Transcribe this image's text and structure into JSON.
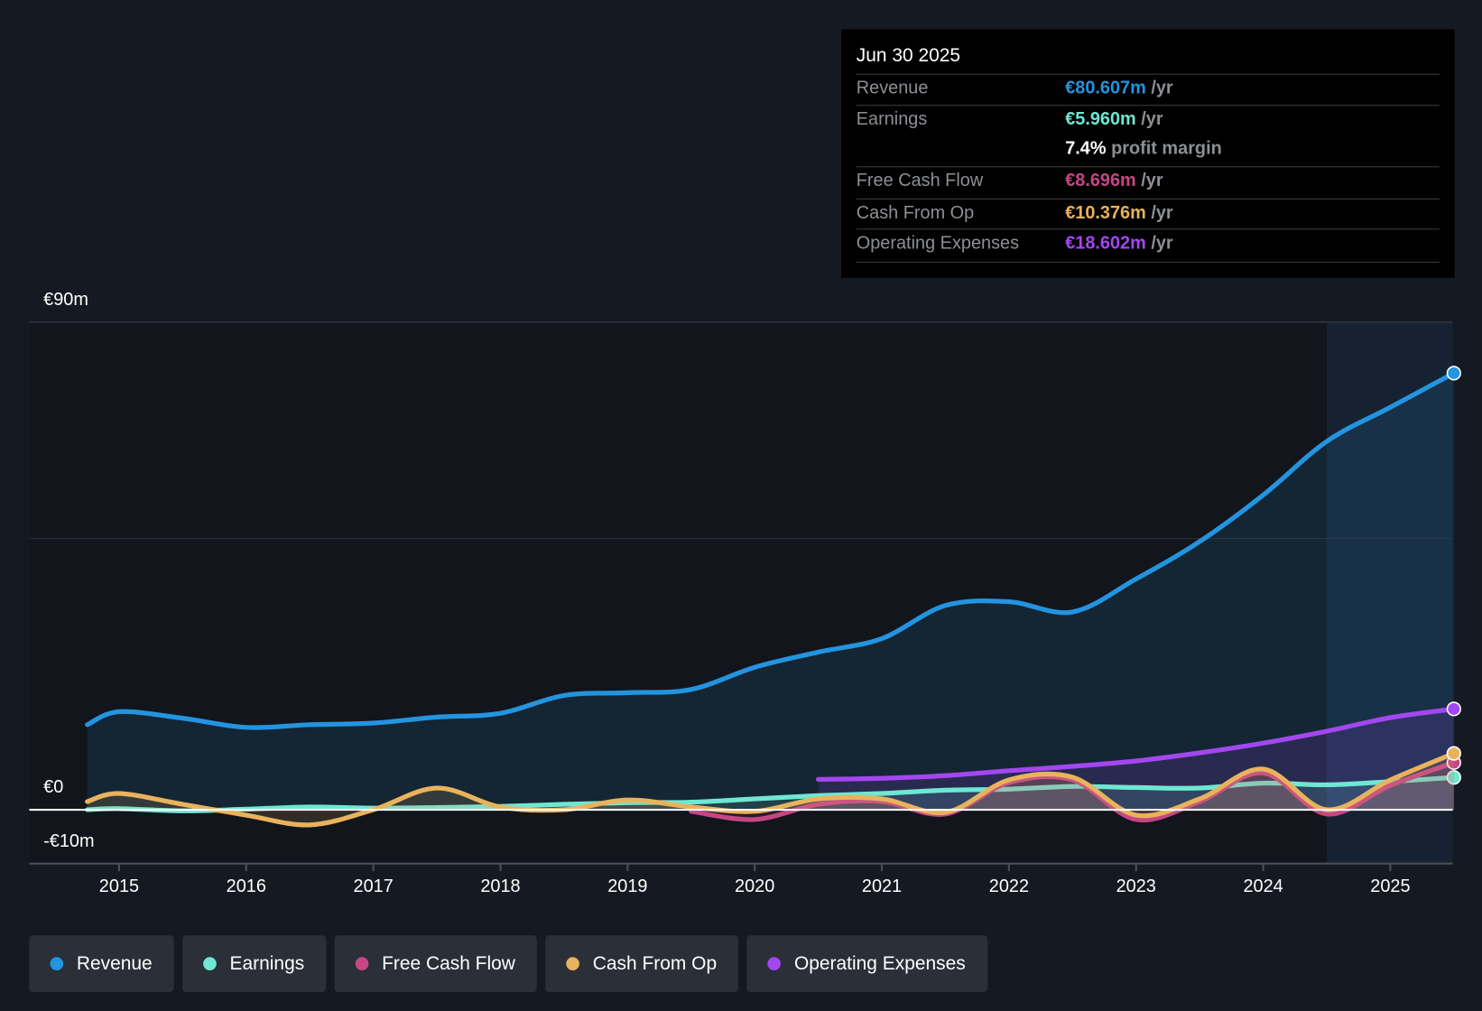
{
  "tooltip": {
    "date": "Jun 30 2025",
    "rows": [
      {
        "label": "Revenue",
        "value": "€80.607m",
        "unit": " /yr",
        "color": "#2394df"
      },
      {
        "label": "Earnings",
        "value": "€5.960m",
        "unit": " /yr",
        "color": "#6ee7d3"
      },
      {
        "label": "",
        "value": "7.4%",
        "unit": " profit margin",
        "color": "#ffffff"
      },
      {
        "label": "Free Cash Flow",
        "value": "€8.696m",
        "unit": " /yr",
        "color": "#c54685"
      },
      {
        "label": "Cash From Op",
        "value": "€10.376m",
        "unit": " /yr",
        "color": "#e9b25c"
      },
      {
        "label": "Operating Expenses",
        "value": "€18.602m",
        "unit": " /yr",
        "color": "#a347f0"
      }
    ]
  },
  "chart_data": {
    "type": "line",
    "y_tick_labels": [
      "€90m",
      "€0",
      "-€10m"
    ],
    "ylim": [
      -10,
      90
    ],
    "x_tick_labels": [
      "2015",
      "2016",
      "2017",
      "2018",
      "2019",
      "2020",
      "2021",
      "2022",
      "2023",
      "2024",
      "2025"
    ],
    "xlim": [
      2014.5,
      2025.5
    ],
    "highlight_from": 2024.5,
    "series": [
      {
        "name": "Revenue",
        "color": "#2394df",
        "fill": true,
        "x": [
          2014.75,
          2015,
          2015.5,
          2016,
          2016.5,
          2017,
          2017.5,
          2018,
          2018.5,
          2019,
          2019.5,
          2020,
          2020.5,
          2021,
          2021.5,
          2022,
          2022.5,
          2023,
          2023.5,
          2024,
          2024.5,
          2025,
          2025.5
        ],
        "y": [
          15.7,
          18.1,
          16.9,
          15.2,
          15.7,
          16.0,
          17.1,
          17.8,
          21.1,
          21.6,
          22.2,
          26.3,
          29.1,
          31.6,
          37.7,
          38.4,
          36.5,
          42.6,
          49.5,
          58.1,
          68.0,
          74.3,
          80.6
        ]
      },
      {
        "name": "Operating Expenses",
        "color": "#a347f0",
        "fill": true,
        "x": [
          2020.5,
          2021,
          2021.5,
          2022,
          2022.5,
          2023,
          2023.5,
          2024,
          2024.5,
          2025,
          2025.5
        ],
        "y": [
          5.6,
          5.8,
          6.3,
          7.2,
          8.0,
          9.0,
          10.5,
          12.3,
          14.5,
          17.0,
          18.6
        ]
      },
      {
        "name": "Earnings",
        "color": "#6ee7d3",
        "fill": true,
        "x": [
          2014.75,
          2015,
          2015.5,
          2016,
          2016.5,
          2017,
          2017.5,
          2018,
          2018.5,
          2019,
          2019.5,
          2020,
          2020.5,
          2021,
          2021.5,
          2022,
          2022.5,
          2023,
          2023.5,
          2024,
          2024.5,
          2025,
          2025.5
        ],
        "y": [
          0,
          0.2,
          -0.2,
          0.1,
          0.5,
          0.3,
          0.4,
          0.6,
          1.0,
          1.3,
          1.4,
          2.0,
          2.6,
          3.0,
          3.6,
          3.8,
          4.3,
          4.1,
          4.0,
          4.9,
          4.6,
          5.2,
          5.96
        ]
      },
      {
        "name": "Free Cash Flow",
        "color": "#c54685",
        "fill": true,
        "x": [
          2019.5,
          2020,
          2020.5,
          2021,
          2021.5,
          2022,
          2022.5,
          2023,
          2023.5,
          2024,
          2024.5,
          2025,
          2025.5
        ],
        "y": [
          -0.3,
          -1.8,
          1.0,
          1.5,
          -0.8,
          5.0,
          5.5,
          -1.8,
          1.5,
          6.8,
          -0.8,
          4.5,
          8.7
        ]
      },
      {
        "name": "Cash From Op",
        "color": "#e9b25c",
        "fill": true,
        "x": [
          2014.75,
          2015,
          2015.5,
          2016,
          2016.5,
          2017,
          2017.5,
          2018,
          2018.5,
          2019,
          2019.5,
          2020,
          2020.5,
          2021,
          2021.5,
          2022,
          2022.5,
          2023,
          2023.5,
          2024,
          2024.5,
          2025,
          2025.5
        ],
        "y": [
          1.5,
          3.0,
          1.0,
          -1.0,
          -2.8,
          0,
          4.0,
          0.5,
          0,
          1.8,
          0.5,
          -0.3,
          2.0,
          2.0,
          -0.5,
          5.5,
          6.0,
          -1.0,
          2.0,
          7.5,
          0,
          5.5,
          10.4
        ]
      }
    ]
  },
  "legend": [
    {
      "label": "Revenue",
      "color": "#2394df"
    },
    {
      "label": "Earnings",
      "color": "#6ee7d3"
    },
    {
      "label": "Free Cash Flow",
      "color": "#c54685"
    },
    {
      "label": "Cash From Op",
      "color": "#e9b25c"
    },
    {
      "label": "Operating Expenses",
      "color": "#a347f0"
    }
  ]
}
